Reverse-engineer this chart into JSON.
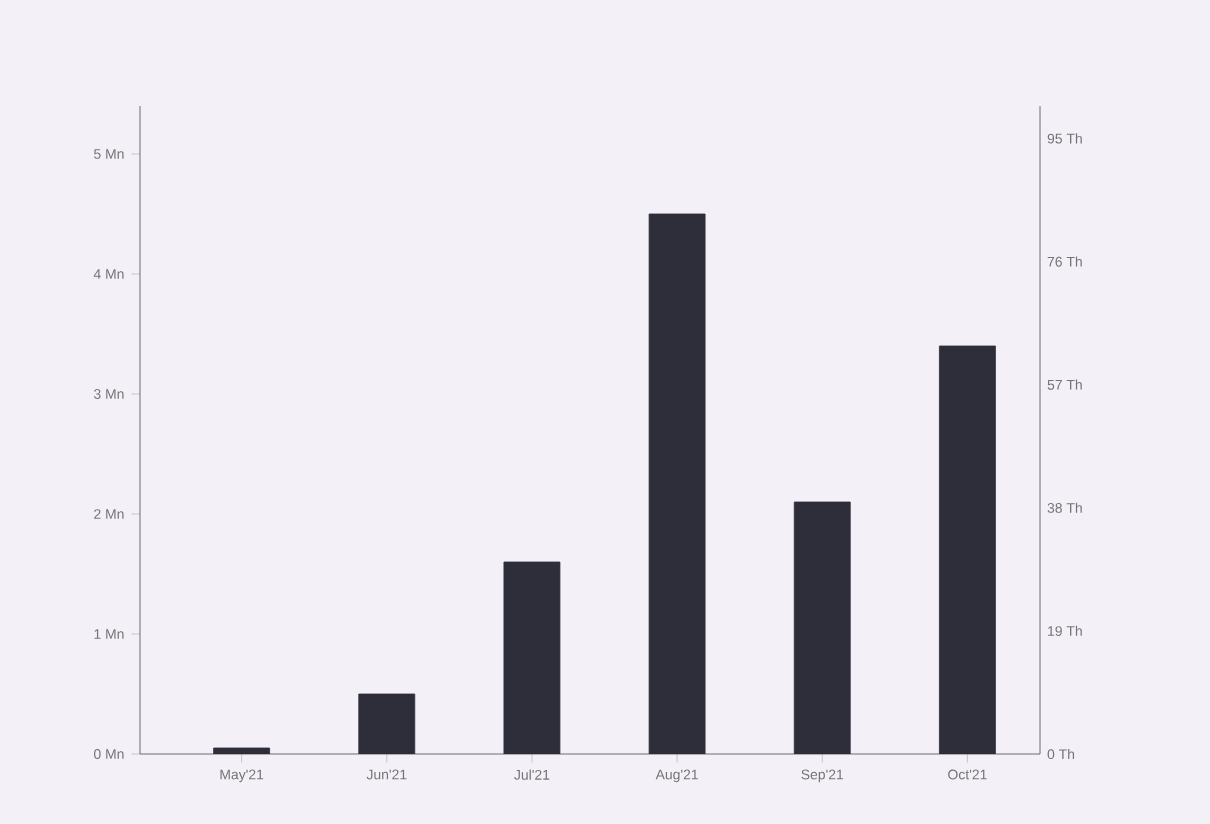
{
  "chart_data": {
    "type": "bar",
    "categories": [
      "May'21",
      "Jun'21",
      "Jul'21",
      "Aug'21",
      "Sep'21",
      "Oct'21"
    ],
    "values": [
      0.05,
      0.5,
      1.6,
      4.5,
      2.1,
      3.4
    ],
    "color": "#2e2e3a",
    "ylim": [
      0,
      5.4
    ],
    "yticks": [
      {
        "value": 0,
        "label": "0 Mn"
      },
      {
        "value": 1,
        "label": "1 Mn"
      },
      {
        "value": 2,
        "label": "2 Mn"
      },
      {
        "value": 3,
        "label": "3 Mn"
      },
      {
        "value": 4,
        "label": "4 Mn"
      },
      {
        "value": 5,
        "label": "5 Mn"
      }
    ],
    "y2lim": [
      0,
      100
    ],
    "y2ticks": [
      {
        "value": 0,
        "label": "0 Th"
      },
      {
        "value": 19,
        "label": "19 Th"
      },
      {
        "value": 38,
        "label": "38 Th"
      },
      {
        "value": 57,
        "label": "57 Th"
      },
      {
        "value": 76,
        "label": "76 Th"
      },
      {
        "value": 95,
        "label": "95 Th"
      }
    ],
    "grid": false
  }
}
